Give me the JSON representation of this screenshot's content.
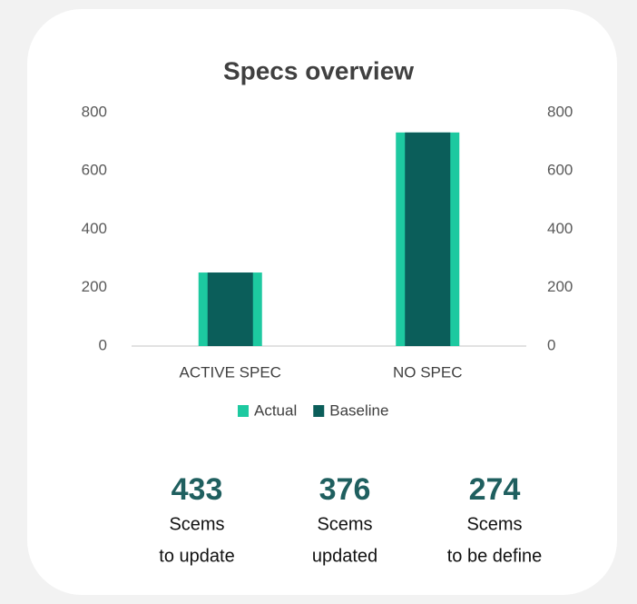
{
  "chart_data": {
    "type": "bar",
    "title": "Specs overview",
    "categories": [
      "ACTIVE SPEC",
      "NO SPEC"
    ],
    "series": [
      {
        "name": "Actual",
        "color": "#1dc9a0",
        "values": [
          252,
          732
        ]
      },
      {
        "name": "Baseline",
        "color": "#0b5e5a",
        "values": [
          252,
          732
        ],
        "axis": "y2"
      }
    ],
    "ylim": [
      0,
      800
    ],
    "yticks": [
      0,
      200,
      400,
      600,
      800
    ],
    "y2lim": [
      0,
      800
    ],
    "y2ticks": [
      0,
      200,
      400,
      600,
      800
    ],
    "legend": "bottom"
  },
  "kpis": [
    {
      "value": 433,
      "label": [
        "Scems",
        "to update"
      ]
    },
    {
      "value": 376,
      "label": [
        "Scems",
        "updated"
      ]
    },
    {
      "value": 274,
      "label": [
        "Scems",
        "to be define"
      ]
    }
  ]
}
